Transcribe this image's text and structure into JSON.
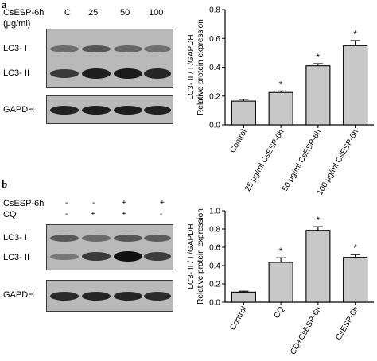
{
  "panel_a": {
    "letter": "a",
    "blot": {
      "treatment_label": "CsESP-6h",
      "unit_label": "(μg/ml)",
      "lanes": [
        "C",
        "25",
        "50",
        "100"
      ],
      "band_labels": [
        "LC3- I",
        "LC3- II"
      ],
      "loading_label": "GAPDH"
    }
  },
  "panel_b": {
    "letter": "b",
    "blot": {
      "rows": [
        {
          "label": "CsESP-6h",
          "signs": [
            "-",
            "-",
            "+",
            "+"
          ]
        },
        {
          "label": "CQ",
          "signs": [
            "-",
            "+",
            "+",
            "-"
          ]
        }
      ],
      "band_labels": [
        "LC3- I",
        "LC3- II"
      ],
      "loading_label": "GAPDH"
    }
  },
  "chart_data": [
    {
      "type": "bar",
      "panel": "a",
      "title": "",
      "ylabel": "LC3- II / I /GAPDH\nRelative protein expression",
      "ylim": [
        0,
        0.8
      ],
      "yticks": [
        "0.0",
        "0.2",
        "0.4",
        "0.6",
        "0.8"
      ],
      "categories": [
        "Control",
        "25 μg/ml  CsESP-6h",
        "50 μg/ml  CsESP-6h",
        "100 μg/ml  CsESP-6h"
      ],
      "values": [
        0.165,
        0.225,
        0.41,
        0.55
      ],
      "errors": [
        0.012,
        0.01,
        0.015,
        0.035
      ],
      "annotations": [
        "",
        "*",
        "*",
        "*"
      ],
      "bar_color": "#c8c8c8",
      "grid": false
    },
    {
      "type": "bar",
      "panel": "b",
      "title": "",
      "ylabel": "LC3- II / I /GAPDH\nRelative protein expression",
      "ylim": [
        0,
        1.0
      ],
      "yticks": [
        "0.0",
        "0.2",
        "0.4",
        "0.6",
        "0.8",
        "1.0"
      ],
      "categories": [
        "Control",
        "CQ",
        "CQ+CsESP-6h",
        "CsESP-6h"
      ],
      "values": [
        0.11,
        0.435,
        0.785,
        0.49
      ],
      "errors": [
        0.01,
        0.05,
        0.04,
        0.03
      ],
      "annotations": [
        "",
        "*",
        "*",
        "*"
      ],
      "bar_color": "#c8c8c8",
      "grid": false
    }
  ]
}
